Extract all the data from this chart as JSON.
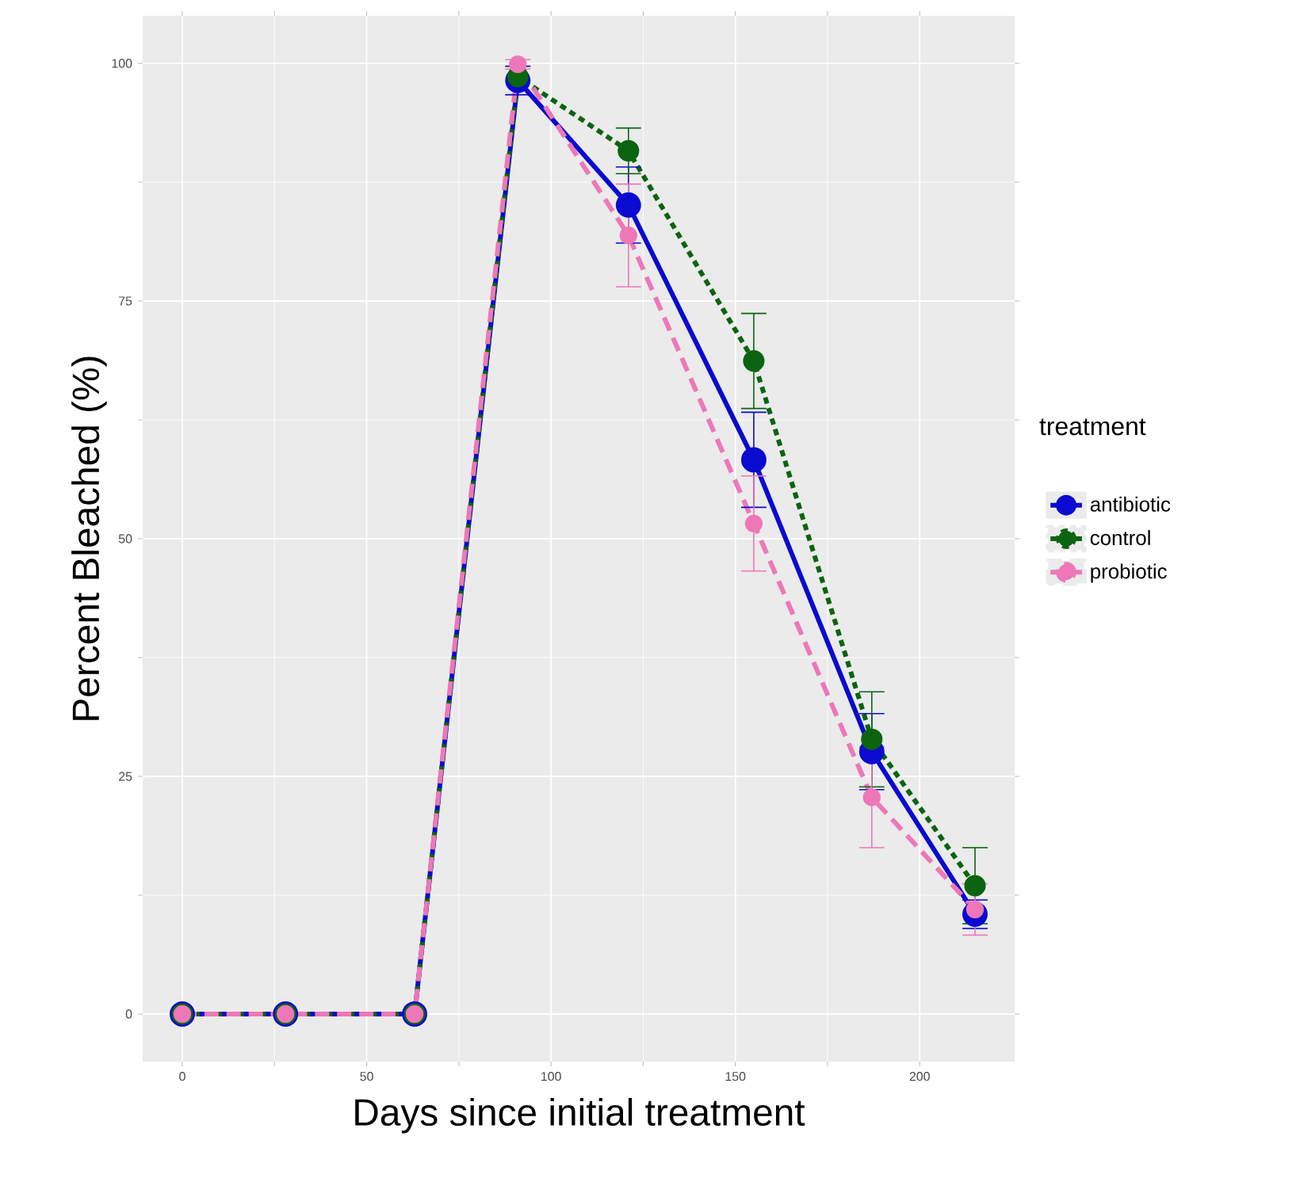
{
  "chart_data": {
    "type": "line",
    "xlabel": "Days since initial treatment",
    "ylabel": "Percent Bleached (%)",
    "legend_title": "treatment",
    "x": [
      0,
      28,
      63,
      91,
      121,
      155,
      187,
      215
    ],
    "series": [
      {
        "name": "antibiotic",
        "color": "#0a0ad0",
        "line_style": "solid",
        "values": [
          0,
          0,
          0,
          98.2,
          85.1,
          58.3,
          27.6,
          10.5
        ],
        "errors": [
          null,
          null,
          null,
          1.5,
          4,
          5,
          4,
          1.5
        ]
      },
      {
        "name": "control",
        "color": "#0b6410",
        "line_style": "dotted",
        "values": [
          0,
          0,
          0,
          98.6,
          90.8,
          68.7,
          28.9,
          13.5
        ],
        "errors": [
          null,
          null,
          null,
          null,
          2.4,
          5,
          5,
          4
        ]
      },
      {
        "name": "probiotic",
        "color": "#ee77b8",
        "line_style": "dashed",
        "values": [
          0,
          0,
          0,
          99.9,
          81.9,
          51.6,
          22.8,
          11.0
        ],
        "errors": [
          null,
          null,
          null,
          0.5,
          5.4,
          5,
          5.3,
          2.7
        ]
      }
    ],
    "xlim": [
      -10.75,
      225.75
    ],
    "ylim": [
      -5,
      105
    ],
    "xticks": [
      0,
      50,
      100,
      150,
      200
    ],
    "yticks": [
      0,
      25,
      50,
      75,
      100
    ],
    "grid": true,
    "legend": "right",
    "marker": "circle"
  }
}
